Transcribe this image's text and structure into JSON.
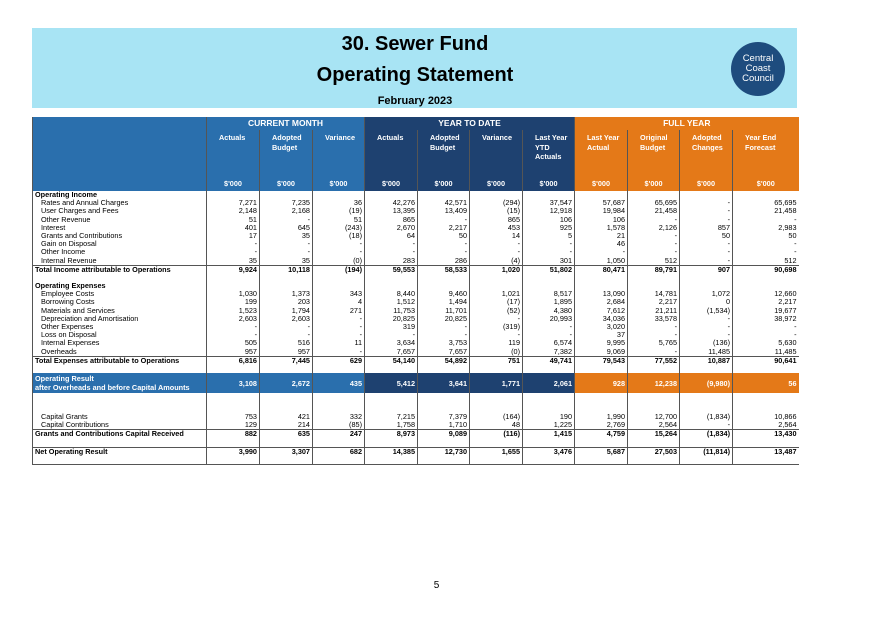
{
  "header": {
    "title_line1": "30.  Sewer Fund",
    "title_line2": "Operating Statement",
    "period": "February 2023",
    "logo_text": [
      "Central",
      "Coast",
      "Council"
    ]
  },
  "columns": {
    "groups": [
      "CURRENT MONTH",
      "YEAR TO DATE",
      "FULL YEAR"
    ],
    "names": [
      "Actuals",
      "Adopted Budget",
      "Variance",
      "Actuals",
      "Adopted Budget",
      "Variance",
      "Last Year YTD Actuals",
      "Last Year Actual",
      "Original Budget",
      "Adopted Changes",
      "Year End Forecast"
    ],
    "unit": "$'000"
  },
  "rows": [
    {
      "label": "Operating Income",
      "type": "section",
      "v": [
        "",
        "",
        "",
        "",
        "",
        "",
        "",
        "",
        "",
        "",
        ""
      ]
    },
    {
      "label": "Rates and Annual Charges",
      "type": "item",
      "v": [
        "7,271",
        "7,235",
        "36",
        "42,276",
        "42,571",
        "(294)",
        "37,547",
        "57,687",
        "65,695",
        "-",
        "65,695"
      ]
    },
    {
      "label": "User Charges and Fees",
      "type": "item",
      "v": [
        "2,148",
        "2,168",
        "(19)",
        "13,395",
        "13,409",
        "(15)",
        "12,918",
        "19,984",
        "21,458",
        "-",
        "21,458"
      ]
    },
    {
      "label": "Other Revenue",
      "type": "item",
      "v": [
        "51",
        "-",
        "51",
        "865",
        "-",
        "865",
        "106",
        "106",
        "-",
        "-",
        "-"
      ]
    },
    {
      "label": "Interest",
      "type": "item",
      "v": [
        "401",
        "645",
        "(243)",
        "2,670",
        "2,217",
        "453",
        "925",
        "1,578",
        "2,126",
        "857",
        "2,983"
      ]
    },
    {
      "label": "Grants and Contributions",
      "type": "item",
      "v": [
        "17",
        "35",
        "(18)",
        "64",
        "50",
        "14",
        "5",
        "21",
        "-",
        "50",
        "50"
      ]
    },
    {
      "label": "Gain on Disposal",
      "type": "item",
      "v": [
        "-",
        "-",
        "-",
        "-",
        "-",
        "-",
        "-",
        "46",
        "-",
        "-",
        "-"
      ]
    },
    {
      "label": "Other Income",
      "type": "item",
      "v": [
        "-",
        "-",
        "-",
        "-",
        "-",
        "-",
        "-",
        "-",
        "-",
        "-",
        "-"
      ]
    },
    {
      "label": "Internal Revenue",
      "type": "item",
      "v": [
        "35",
        "35",
        "(0)",
        "283",
        "286",
        "(4)",
        "301",
        "1,050",
        "512",
        "-",
        "512"
      ]
    },
    {
      "label": "Total Income attributable to Operations",
      "type": "total",
      "v": [
        "9,924",
        "10,118",
        "(194)",
        "59,553",
        "58,533",
        "1,020",
        "51,802",
        "80,471",
        "89,791",
        "907",
        "90,698"
      ]
    },
    {
      "label": "",
      "type": "gap",
      "v": [
        "",
        "",
        "",
        "",
        "",
        "",
        "",
        "",
        "",
        "",
        ""
      ]
    },
    {
      "label": "Operating Expenses",
      "type": "section",
      "v": [
        "",
        "",
        "",
        "",
        "",
        "",
        "",
        "",
        "",
        "",
        ""
      ]
    },
    {
      "label": "Employee Costs",
      "type": "item",
      "v": [
        "1,030",
        "1,373",
        "343",
        "8,440",
        "9,460",
        "1,021",
        "8,517",
        "13,090",
        "14,781",
        "1,072",
        "12,660"
      ]
    },
    {
      "label": "Borrowing Costs",
      "type": "item",
      "v": [
        "199",
        "203",
        "4",
        "1,512",
        "1,494",
        "(17)",
        "1,895",
        "2,684",
        "2,217",
        "0",
        "2,217"
      ]
    },
    {
      "label": "Materials and Services",
      "type": "item",
      "v": [
        "1,523",
        "1,794",
        "271",
        "11,753",
        "11,701",
        "(52)",
        "4,380",
        "7,612",
        "21,211",
        "(1,534)",
        "19,677"
      ]
    },
    {
      "label": "Depreciation and Amortisation",
      "type": "item",
      "v": [
        "2,603",
        "2,603",
        "-",
        "20,825",
        "20,825",
        "-",
        "20,993",
        "34,036",
        "33,578",
        "-",
        "38,972"
      ]
    },
    {
      "label": "Other Expenses",
      "type": "item",
      "v": [
        "-",
        "-",
        "-",
        "319",
        "-",
        "(319)",
        "-",
        "3,020",
        "-",
        "-",
        "-"
      ]
    },
    {
      "label": "Loss on Disposal",
      "type": "item",
      "v": [
        "-",
        "-",
        "-",
        "-",
        "-",
        "-",
        "-",
        "37",
        "-",
        "-",
        "-"
      ]
    },
    {
      "label": "Internal Expenses",
      "type": "item",
      "v": [
        "505",
        "516",
        "11",
        "3,634",
        "3,753",
        "119",
        "6,574",
        "9,995",
        "5,765",
        "(136)",
        "5,630"
      ]
    },
    {
      "label": "Overheads",
      "type": "item",
      "v": [
        "957",
        "957",
        "-",
        "7,657",
        "7,657",
        "(0)",
        "7,382",
        "9,069",
        "-",
        "11,485",
        "11,485"
      ]
    },
    {
      "label": "Total Expenses attributable to Operations",
      "type": "total",
      "v": [
        "6,816",
        "7,445",
        "629",
        "54,140",
        "54,892",
        "751",
        "49,741",
        "79,543",
        "77,552",
        "10,887",
        "90,641"
      ]
    },
    {
      "label": "",
      "type": "gap",
      "v": [
        "",
        "",
        "",
        "",
        "",
        "",
        "",
        "",
        "",
        "",
        ""
      ]
    },
    {
      "label": "Operating Result|after Overheads and before Capital Amounts",
      "type": "result",
      "v": [
        "3,108",
        "2,672",
        "435",
        "5,412",
        "3,641",
        "1,771",
        "2,061",
        "928",
        "12,238",
        "(9,980)",
        "56"
      ]
    },
    {
      "label": "",
      "type": "gap-tall",
      "v": [
        "",
        "",
        "",
        "",
        "",
        "",
        "",
        "",
        "",
        "",
        ""
      ]
    },
    {
      "label": "Capital Grants",
      "type": "item",
      "v": [
        "753",
        "421",
        "332",
        "7,215",
        "7,379",
        "(164)",
        "190",
        "1,990",
        "12,700",
        "(1,834)",
        "10,866"
      ]
    },
    {
      "label": "Capital Contributions",
      "type": "item",
      "v": [
        "129",
        "214",
        "(85)",
        "1,758",
        "1,710",
        "48",
        "1,225",
        "2,769",
        "2,564",
        "-",
        "2,564"
      ]
    },
    {
      "label": "Grants and Contributions Capital Received",
      "type": "total",
      "v": [
        "882",
        "635",
        "247",
        "8,973",
        "9,089",
        "(116)",
        "1,415",
        "4,759",
        "15,264",
        "(1,834)",
        "13,430"
      ]
    },
    {
      "label": "",
      "type": "gap",
      "v": [
        "",
        "",
        "",
        "",
        "",
        "",
        "",
        "",
        "",
        "",
        ""
      ]
    },
    {
      "label": "Net Operating Result",
      "type": "total",
      "v": [
        "3,990",
        "3,307",
        "682",
        "14,385",
        "12,730",
        "1,655",
        "3,476",
        "5,687",
        "27,503",
        "(11,814)",
        "13,487"
      ]
    },
    {
      "label": "",
      "type": "gap-last",
      "v": [
        "",
        "",
        "",
        "",
        "",
        "",
        "",
        "",
        "",
        "",
        ""
      ]
    }
  ],
  "footer": {
    "page_number": "5"
  },
  "colors": {
    "banner": "#a8e4f4",
    "current_month": "#2a6fad",
    "year_to_date": "#1e4170",
    "full_year": "#e47918",
    "logo": "#1e4c7e"
  }
}
